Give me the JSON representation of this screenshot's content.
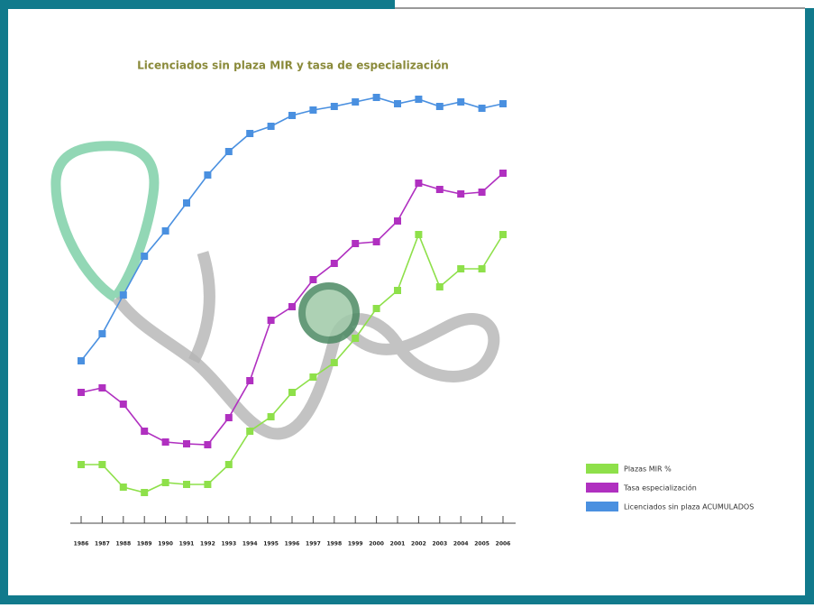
{
  "chart_data": {
    "type": "line",
    "title": "Licenciados sin plaza MIR y tasa de especialización",
    "categories": [
      "1986",
      "1987",
      "1988",
      "1989",
      "1990",
      "1991",
      "1992",
      "1993",
      "1994",
      "1995",
      "1996",
      "1997",
      "1998",
      "1999",
      "2000",
      "2001",
      "2002",
      "2003",
      "2004",
      "2005",
      "2006"
    ],
    "ylim": [
      0,
      100
    ],
    "series": [
      {
        "name": "Plazas MIR %",
        "color": "#8ee04a",
        "values": [
          13,
          13,
          8,
          6.8,
          9,
          8.6,
          8.6,
          13,
          20.4,
          23.6,
          29,
          32.4,
          35.6,
          41,
          47.6,
          51.6,
          64,
          52.4,
          56.4,
          56.4,
          64
        ]
      },
      {
        "name": "Tasa especialización",
        "color": "#b030c0",
        "values": [
          29,
          30,
          26.4,
          20.4,
          18,
          17.6,
          17.4,
          23.4,
          31.6,
          45,
          48,
          54,
          57.6,
          62,
          62.4,
          67,
          75.4,
          74,
          73,
          73.4,
          77.6
        ]
      },
      {
        "name": "Licenciados sin plaza ACUMULADOS",
        "color": "#4a90e0",
        "values": [
          36,
          42,
          50.6,
          59.2,
          64.8,
          71,
          77.2,
          82.4,
          86.4,
          88,
          90.4,
          91.6,
          92.4,
          93.4,
          94.4,
          93,
          94,
          92.4,
          93.4,
          92,
          93
        ]
      }
    ]
  }
}
